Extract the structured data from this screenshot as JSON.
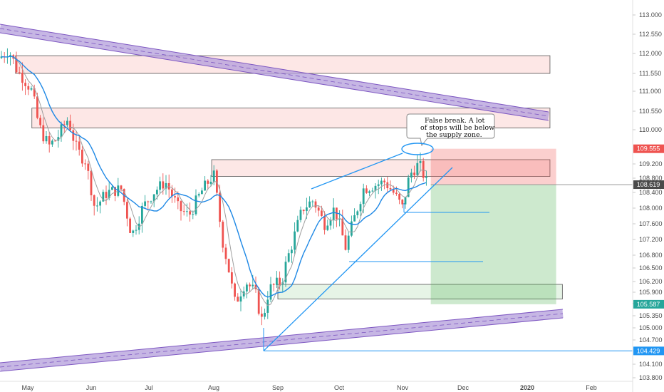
{
  "chart_data": {
    "type": "candlestick",
    "y_ticks": [
      "113.000",
      "112.550",
      "112.000",
      "111.550",
      "111.000",
      "110.550",
      "110.000",
      "109.200",
      "108.800",
      "108.400",
      "108.000",
      "107.600",
      "107.200",
      "106.800",
      "106.500",
      "106.200",
      "105.900",
      "105.600",
      "105.350",
      "105.000",
      "104.700",
      "104.100",
      "103.800"
    ],
    "x_ticks": [
      {
        "label": "May",
        "bold": false
      },
      {
        "label": "Jun",
        "bold": false
      },
      {
        "label": "Jul",
        "bold": false
      },
      {
        "label": "Aug",
        "bold": false
      },
      {
        "label": "Sep",
        "bold": false
      },
      {
        "label": "Oct",
        "bold": false
      },
      {
        "label": "Nov",
        "bold": false
      },
      {
        "label": "Dec",
        "bold": false
      },
      {
        "label": "2020",
        "bold": true
      },
      {
        "label": "Feb",
        "bold": false
      }
    ],
    "price_tags": [
      {
        "label": "109.555",
        "value": 109.555,
        "color": "#ef5350"
      },
      {
        "label": "108.619",
        "value": 108.619,
        "color": "#4a4a4a"
      },
      {
        "label": "105.587",
        "value": 105.587,
        "color": "#26a69a"
      },
      {
        "label": "104.429",
        "value": 104.429,
        "color": "#2196f3"
      }
    ],
    "zones": [
      {
        "kind": "supply",
        "top": 111.95,
        "bottom": 111.55,
        "start": "2019-04-25",
        "end": "2020-01-12"
      },
      {
        "kind": "supply",
        "top": 110.62,
        "bottom": 110.05,
        "start": "2019-05-03",
        "end": "2020-01-12"
      },
      {
        "kind": "supply",
        "top": 109.3,
        "bottom": 108.85,
        "start": "2019-07-31",
        "end": "2020-01-12"
      },
      {
        "kind": "demand",
        "top": 106.12,
        "bottom": 105.72,
        "start": "2019-09-01",
        "end": "2020-01-18"
      }
    ],
    "position": {
      "entry": 108.619,
      "stop": 109.555,
      "target": 105.587,
      "start": "2019-11-15",
      "end": "2020-01-15"
    },
    "callout": "False break. A lot of stops will be below the supply zone."
  }
}
